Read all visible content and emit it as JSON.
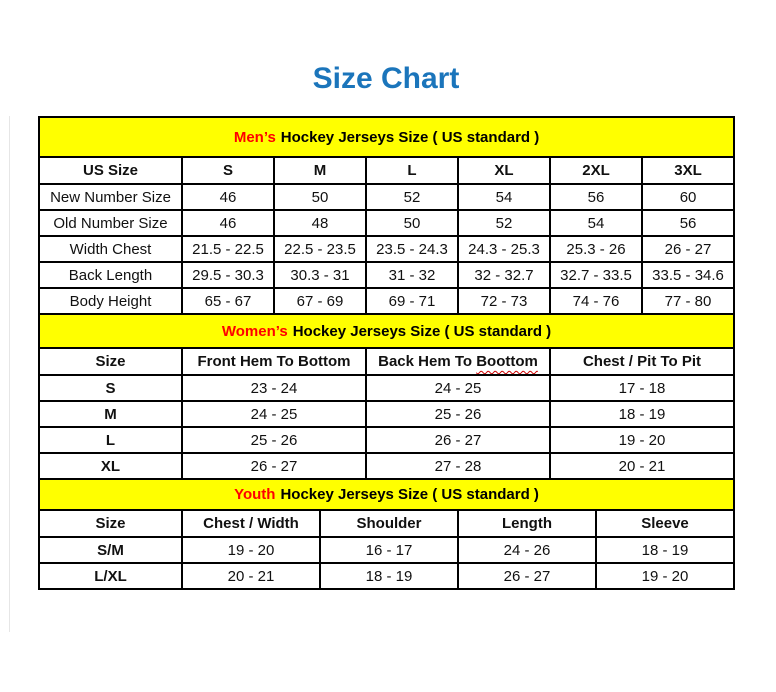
{
  "title": "Size Chart",
  "colors": {
    "title_blue": "#1b75bb",
    "band_yellow": "#ffff00",
    "highlight_red": "#ff0000",
    "border_black": "#000000"
  },
  "tables": {
    "mens": {
      "band_highlight": "Men’s",
      "band_rest": "Hockey Jerseys Size ( US standard )",
      "columns": [
        "US Size",
        "S",
        "M",
        "L",
        "XL",
        "2XL",
        "3XL"
      ],
      "rows": [
        {
          "label": "New Number Size",
          "values": [
            "46",
            "50",
            "52",
            "54",
            "56",
            "60"
          ]
        },
        {
          "label": "Old Number Size",
          "values": [
            "46",
            "48",
            "50",
            "52",
            "54",
            "56"
          ]
        },
        {
          "label": "Width Chest",
          "values": [
            "21.5 - 22.5",
            "22.5 - 23.5",
            "23.5 - 24.3",
            "24.3 - 25.3",
            "25.3 - 26",
            "26 - 27"
          ]
        },
        {
          "label": "Back Length",
          "values": [
            "29.5 - 30.3",
            "30.3 - 31",
            "31 - 32",
            "32 - 32.7",
            "32.7 - 33.5",
            "33.5 - 34.6"
          ]
        },
        {
          "label": "Body Height",
          "values": [
            "65 - 67",
            "67 - 69",
            "69 - 71",
            "72 - 73",
            "74 - 76",
            "77 - 80"
          ]
        }
      ]
    },
    "womens": {
      "band_highlight": "Women’s",
      "band_rest": "Hockey Jerseys Size ( US standard )",
      "columns": [
        "Size",
        "Front Hem To Bottom",
        "Back Hem To Boottom",
        "Chest / Pit To Pit"
      ],
      "col2_prefix": "Back Hem To ",
      "col2_misspelled": "Boottom",
      "rows": [
        {
          "label": "S",
          "values": [
            "23 - 24",
            "24 - 25",
            "17 - 18"
          ]
        },
        {
          "label": "M",
          "values": [
            "24 - 25",
            "25 - 26",
            "18 - 19"
          ]
        },
        {
          "label": "L",
          "values": [
            "25 - 26",
            "26 - 27",
            "19 - 20"
          ]
        },
        {
          "label": "XL",
          "values": [
            "26 - 27",
            "27 - 28",
            "20 - 21"
          ]
        }
      ]
    },
    "youth": {
      "band_highlight": "Youth",
      "band_rest": "Hockey Jerseys Size ( US standard )",
      "columns": [
        "Size",
        "Chest / Width",
        "Shoulder",
        "Length",
        "Sleeve"
      ],
      "rows": [
        {
          "label": "S/M",
          "values": [
            "19 - 20",
            "16 - 17",
            "24 - 26",
            "18 - 19"
          ]
        },
        {
          "label": "L/XL",
          "values": [
            "20 - 21",
            "18 - 19",
            "26 - 27",
            "19 - 20"
          ]
        }
      ]
    }
  }
}
